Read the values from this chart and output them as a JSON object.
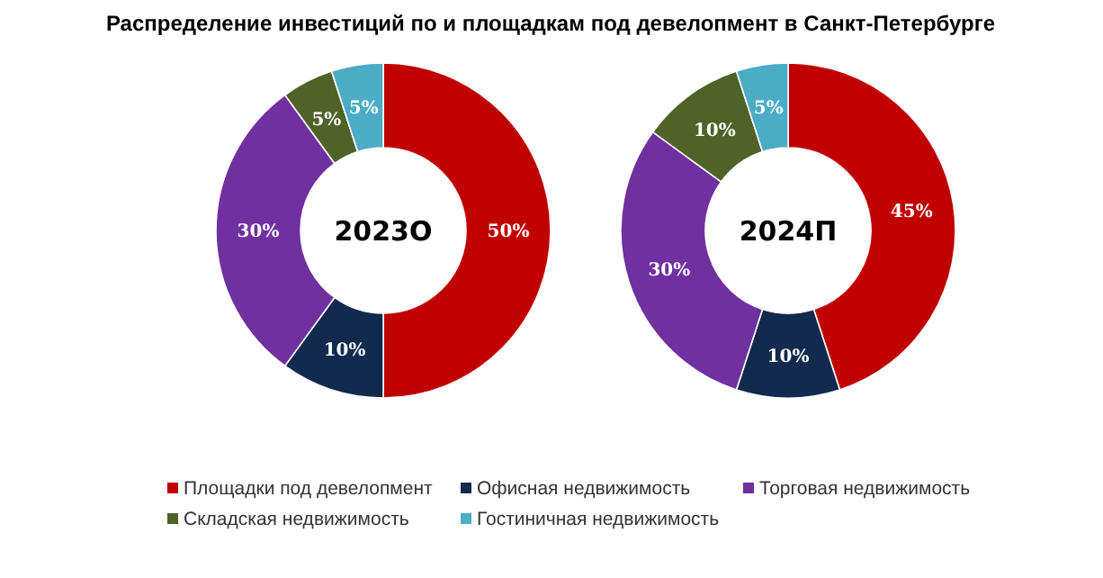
{
  "chart_data": {
    "type": "donut",
    "title": "Распределение инвестиций по и площадкам под девелопмент в Санкт-Петербурге",
    "categories": [
      "Площадки под девелопмент",
      "Офисная недвижимость",
      "Торговая недвижимость",
      "Складская недвижимость",
      "Гостиничная недвижимость"
    ],
    "colors": [
      "#c00000",
      "#112a4e",
      "#7030a0",
      "#4f6228",
      "#4bacc6"
    ],
    "legend": "bottom",
    "series": [
      {
        "name": "2023О",
        "values": [
          50,
          10,
          30,
          5,
          5
        ],
        "value_labels": [
          "50%",
          "10%",
          "30%",
          "5%",
          "5%"
        ]
      },
      {
        "name": "2024П",
        "values": [
          45,
          10,
          30,
          10,
          5
        ],
        "value_labels": [
          "45%",
          "10%",
          "30%",
          "10%",
          "5%"
        ]
      }
    ]
  }
}
